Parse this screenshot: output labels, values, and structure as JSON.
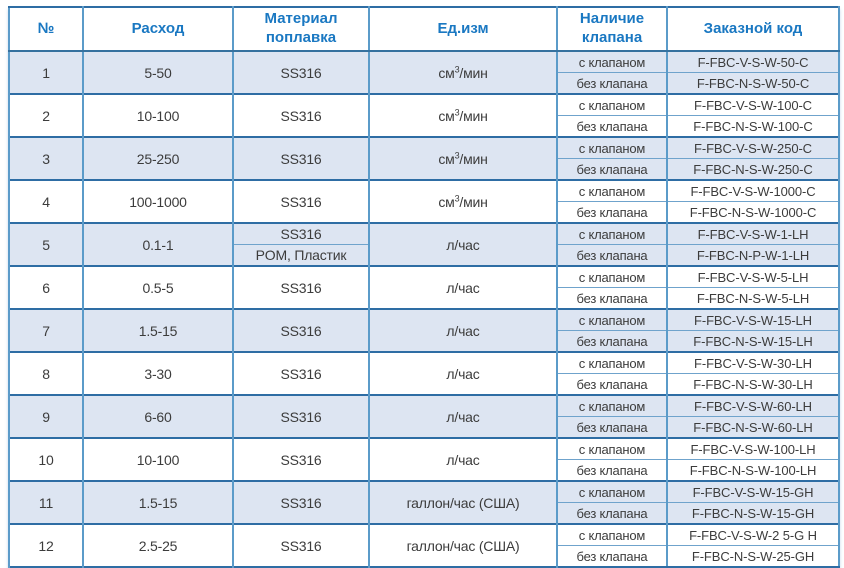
{
  "table": {
    "headers": {
      "num": "№",
      "flow": "Расход",
      "material": "Материал поплавка",
      "unit": "Ед.изм",
      "valve": "Наличие клапана",
      "code": "Заказной код"
    },
    "valve_with": "с клапаном",
    "valve_without": "без клапана",
    "rows": [
      {
        "num": "1",
        "flow": "5-50",
        "materials": [
          "SS316"
        ],
        "unit": {
          "pre": "см",
          "sup": "3",
          "post": "/мин"
        },
        "codes": [
          "F-FBC-V-S-W-50-C",
          "F-FBC-N-S-W-50-C"
        ]
      },
      {
        "num": "2",
        "flow": "10-100",
        "materials": [
          "SS316"
        ],
        "unit": {
          "pre": "см",
          "sup": "3",
          "post": "/мин"
        },
        "codes": [
          "F-FBC-V-S-W-100-C",
          "F-FBC-N-S-W-100-C"
        ]
      },
      {
        "num": "3",
        "flow": "25-250",
        "materials": [
          "SS316"
        ],
        "unit": {
          "pre": "см",
          "sup": "3",
          "post": "/мин"
        },
        "codes": [
          "F-FBC-V-S-W-250-C",
          "F-FBC-N-S-W-250-C"
        ]
      },
      {
        "num": "4",
        "flow": "100-1000",
        "materials": [
          "SS316"
        ],
        "unit": {
          "pre": "см",
          "sup": "3",
          "post": "/мин"
        },
        "codes": [
          "F-FBC-V-S-W-1000-C",
          "F-FBC-N-S-W-1000-C"
        ]
      },
      {
        "num": "5",
        "flow": "0.1-1",
        "materials": [
          "SS316",
          "POM, Пластик"
        ],
        "unit": {
          "pre": "л/час",
          "sup": "",
          "post": ""
        },
        "codes": [
          "F-FBC-V-S-W-1-LH",
          "F-FBC-N-P-W-1-LH"
        ]
      },
      {
        "num": "6",
        "flow": "0.5-5",
        "materials": [
          "SS316"
        ],
        "unit": {
          "pre": "л/час",
          "sup": "",
          "post": ""
        },
        "codes": [
          "F-FBC-V-S-W-5-LH",
          "F-FBC-N-S-W-5-LH"
        ]
      },
      {
        "num": "7",
        "flow": "1.5-15",
        "materials": [
          "SS316"
        ],
        "unit": {
          "pre": "л/час",
          "sup": "",
          "post": ""
        },
        "codes": [
          "F-FBC-V-S-W-15-LH",
          "F-FBC-N-S-W-15-LH"
        ]
      },
      {
        "num": "8",
        "flow": "3-30",
        "materials": [
          "SS316"
        ],
        "unit": {
          "pre": "л/час",
          "sup": "",
          "post": ""
        },
        "codes": [
          "F-FBC-V-S-W-30-LH",
          "F-FBC-N-S-W-30-LH"
        ]
      },
      {
        "num": "9",
        "flow": "6-60",
        "materials": [
          "SS316"
        ],
        "unit": {
          "pre": "л/час",
          "sup": "",
          "post": ""
        },
        "codes": [
          "F-FBC-V-S-W-60-LH",
          "F-FBC-N-S-W-60-LH"
        ]
      },
      {
        "num": "10",
        "flow": "10-100",
        "materials": [
          "SS316"
        ],
        "unit": {
          "pre": "л/час",
          "sup": "",
          "post": ""
        },
        "codes": [
          "F-FBC-V-S-W-100-LH",
          "F-FBC-N-S-W-100-LH"
        ]
      },
      {
        "num": "11",
        "flow": "1.5-15",
        "materials": [
          "SS316"
        ],
        "unit": {
          "pre": "галлон/час (США)",
          "sup": "",
          "post": ""
        },
        "codes": [
          "F-FBC-V-S-W-15-GH",
          "F-FBC-N-S-W-15-GH"
        ]
      },
      {
        "num": "12",
        "flow": "2.5-25",
        "materials": [
          "SS316"
        ],
        "unit": {
          "pre": "галлон/час (США)",
          "sup": "",
          "post": ""
        },
        "codes": [
          "F-FBC-V-S-W-2 5-G H",
          "F-FBC-N-S-W-25-GH"
        ]
      }
    ],
    "colors": {
      "accent_text": "#1a78c2",
      "border_dark": "#2e6da4",
      "border_vertical": "#5b9bc9",
      "border_sub": "#6fa3cc",
      "row_shade": "#dde5f2",
      "body_text": "#3c3c3c"
    }
  }
}
